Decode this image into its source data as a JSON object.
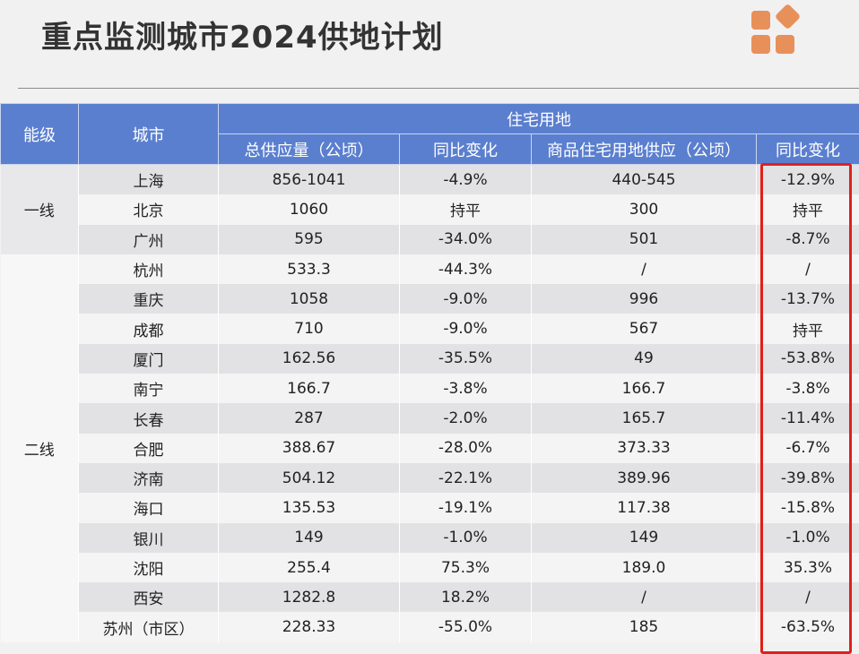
{
  "title": "重点监测城市2024供地计划",
  "logo": "orange-squares-logo",
  "colors": {
    "header": "#5b7fcf",
    "highlight": "#e0201a",
    "logo": "#e8905a"
  },
  "table": {
    "headers": {
      "tier": "能级",
      "city": "城市",
      "group": "住宅用地",
      "total_supply": "总供应量（公顷）",
      "total_yoy": "同比变化",
      "commercial_supply": "商品住宅用地供应（公顷）",
      "commercial_yoy": "同比变化"
    },
    "tiers": [
      {
        "label": "一线",
        "rows": 3
      },
      {
        "label": "二线",
        "rows": 13
      }
    ],
    "rows": [
      [
        "上海",
        "856-1041",
        "-4.9%",
        "440-545",
        "-12.9%"
      ],
      [
        "北京",
        "1060",
        "持平",
        "300",
        "持平"
      ],
      [
        "广州",
        "595",
        "-34.0%",
        "501",
        "-8.7%"
      ],
      [
        "杭州",
        "533.3",
        "-44.3%",
        "/",
        "/"
      ],
      [
        "重庆",
        "1058",
        "-9.0%",
        "996",
        "-13.7%"
      ],
      [
        "成都",
        "710",
        "-9.0%",
        "567",
        "持平"
      ],
      [
        "厦门",
        "162.56",
        "-35.5%",
        "49",
        "-53.8%"
      ],
      [
        "南宁",
        "166.7",
        "-3.8%",
        "166.7",
        "-3.8%"
      ],
      [
        "长春",
        "287",
        "-2.0%",
        "165.7",
        "-11.4%"
      ],
      [
        "合肥",
        "388.67",
        "-28.0%",
        "373.33",
        "-6.7%"
      ],
      [
        "济南",
        "504.12",
        "-22.1%",
        "389.96",
        "-39.8%"
      ],
      [
        "海口",
        "135.53",
        "-19.1%",
        "117.38",
        "-15.8%"
      ],
      [
        "银川",
        "149",
        "-1.0%",
        "149",
        "-1.0%"
      ],
      [
        "沈阳",
        "255.4",
        "75.3%",
        "189.0",
        "35.3%"
      ],
      [
        "西安",
        "1282.8",
        "18.2%",
        "/",
        "/"
      ],
      [
        "苏州（市区）",
        "228.33",
        "-55.0%",
        "185",
        "-63.5%"
      ]
    ]
  }
}
